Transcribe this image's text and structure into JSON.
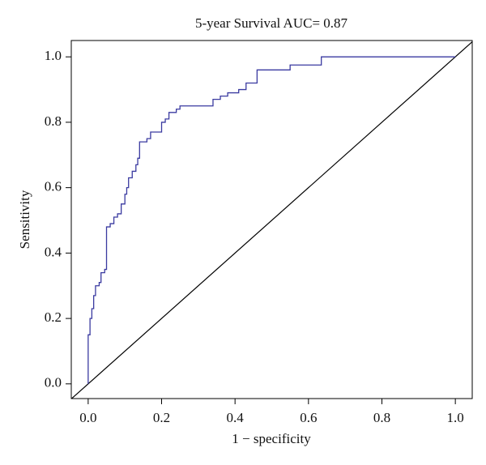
{
  "chart_data": {
    "type": "line",
    "title": "5-year Survival AUC= 0.87",
    "xlabel": "1 − specificity",
    "ylabel": "Sensitivity",
    "xlim": [
      -0.046,
      1.046
    ],
    "ylim": [
      -0.045,
      1.05
    ],
    "xticks": [
      {
        "value": 0,
        "label": "0.0"
      },
      0.2,
      0.4,
      0.6,
      0.8,
      {
        "value": 1,
        "label": "1.0"
      }
    ],
    "yticks": [
      {
        "value": 0,
        "label": "0.0"
      },
      0.2,
      0.4,
      0.6,
      0.8,
      {
        "value": 1,
        "label": "1.0"
      }
    ],
    "abline": {
      "intercept": 0,
      "slope": 1,
      "color": "#000000"
    },
    "series": [
      {
        "color": "#3a3aa0",
        "x": [
          0,
          0,
          0.005,
          0.005,
          0.01,
          0.01,
          0.015,
          0.015,
          0.02,
          0.02,
          0.03,
          0.03,
          0.035,
          0.035,
          0.045,
          0.045,
          0.05,
          0.05,
          0.06,
          0.06,
          0.07,
          0.07,
          0.08,
          0.08,
          0.09,
          0.09,
          0.1,
          0.1,
          0.105,
          0.105,
          0.11,
          0.11,
          0.12,
          0.12,
          0.13,
          0.13,
          0.135,
          0.135,
          0.14,
          0.14,
          0.16,
          0.16,
          0.17,
          0.17,
          0.2,
          0.2,
          0.21,
          0.21,
          0.22,
          0.22,
          0.24,
          0.24,
          0.25,
          0.25,
          0.34,
          0.34,
          0.36,
          0.36,
          0.38,
          0.38,
          0.41,
          0.41,
          0.43,
          0.43,
          0.46,
          0.46,
          0.55,
          0.55,
          0.635,
          0.635,
          1
        ],
        "values": [
          0,
          0.15,
          0.15,
          0.2,
          0.2,
          0.23,
          0.23,
          0.27,
          0.27,
          0.3,
          0.3,
          0.31,
          0.31,
          0.34,
          0.34,
          0.35,
          0.35,
          0.48,
          0.48,
          0.49,
          0.49,
          0.51,
          0.51,
          0.52,
          0.52,
          0.55,
          0.55,
          0.58,
          0.58,
          0.6,
          0.6,
          0.63,
          0.63,
          0.65,
          0.65,
          0.67,
          0.67,
          0.69,
          0.69,
          0.74,
          0.74,
          0.75,
          0.75,
          0.77,
          0.77,
          0.8,
          0.8,
          0.81,
          0.81,
          0.83,
          0.83,
          0.84,
          0.84,
          0.85,
          0.85,
          0.87,
          0.87,
          0.88,
          0.88,
          0.89,
          0.89,
          0.9,
          0.9,
          0.92,
          0.92,
          0.96,
          0.96,
          0.975,
          0.975,
          1,
          1
        ]
      }
    ]
  }
}
